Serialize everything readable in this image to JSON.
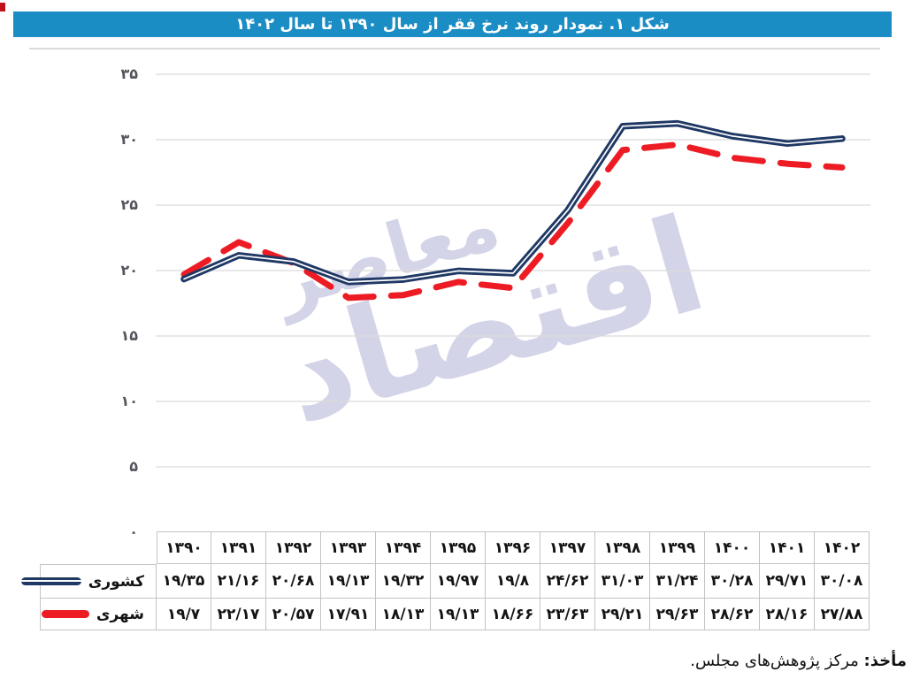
{
  "title_bar": {
    "text": "شکل ۱. نمودار روند نرخ فقر از سال ۱۳۹۰ تا سال ۱۴۰۲",
    "bg_color": "#1b8dc5",
    "text_color": "#ffffff"
  },
  "source_note": {
    "label": "مأخذ:",
    "text": "مرکز پژوهش‌های مجلس."
  },
  "chart_data": {
    "type": "line",
    "title": "شکل ۱. نمودار روند نرخ فقر از سال ۱۳۹۰ تا سال ۱۴۰۲",
    "x_categories": [
      1390,
      1391,
      1392,
      1393,
      1394,
      1395,
      1396,
      1397,
      1398,
      1399,
      1400,
      1401,
      1402
    ],
    "x_categories_display": [
      "۱۳۹۰",
      "۱۳۹۱",
      "۱۳۹۲",
      "۱۳۹۳",
      "۱۳۹۴",
      "۱۳۹۵",
      "۱۳۹۶",
      "۱۳۹۷",
      "۱۳۹۸",
      "۱۳۹۹",
      "۱۴۰۰",
      "۱۴۰۱",
      "۱۴۰۲"
    ],
    "series": [
      {
        "name": "کشوری",
        "color": "#1f3864",
        "line_style": "solid-thick-with-white-inner-stripe",
        "values": [
          19.35,
          21.16,
          20.68,
          19.13,
          19.32,
          19.97,
          19.8,
          24.62,
          31.03,
          31.24,
          30.28,
          29.71,
          30.08
        ],
        "display_values": [
          "۱۹/۳۵",
          "۲۱/۱۶",
          "۲۰/۶۸",
          "۱۹/۱۳",
          "۱۹/۳۲",
          "۱۹/۹۷",
          "۱۹/۸",
          "۲۴/۶۲",
          "۳۱/۰۳",
          "۳۱/۲۴",
          "۳۰/۲۸",
          "۲۹/۷۱",
          "۳۰/۰۸"
        ]
      },
      {
        "name": "شهری",
        "color": "#ed1c24",
        "line_style": "dashed-thick",
        "values": [
          19.7,
          22.17,
          20.57,
          17.91,
          18.13,
          19.13,
          18.66,
          23.63,
          29.21,
          29.63,
          28.62,
          28.16,
          27.88
        ],
        "display_values": [
          "۱۹/۷",
          "۲۲/۱۷",
          "۲۰/۵۷",
          "۱۷/۹۱",
          "۱۸/۱۳",
          "۱۹/۱۳",
          "۱۸/۶۶",
          "۲۳/۶۳",
          "۲۹/۲۱",
          "۲۹/۶۳",
          "۲۸/۶۲",
          "۲۸/۱۶",
          "۲۷/۸۸"
        ]
      }
    ],
    "y_axis": {
      "min": 0,
      "max": 35,
      "step": 5,
      "tick_labels_display": [
        "۰",
        "۵",
        "۱۰",
        "۱۵",
        "۲۰",
        "۲۵",
        "۳۰",
        "۳۵"
      ]
    },
    "grid": "horizontal-on",
    "gridline_color": "#d9d9d9",
    "legend_position": "left-of-data-table",
    "watermark": "اقتصاد معاصر"
  }
}
